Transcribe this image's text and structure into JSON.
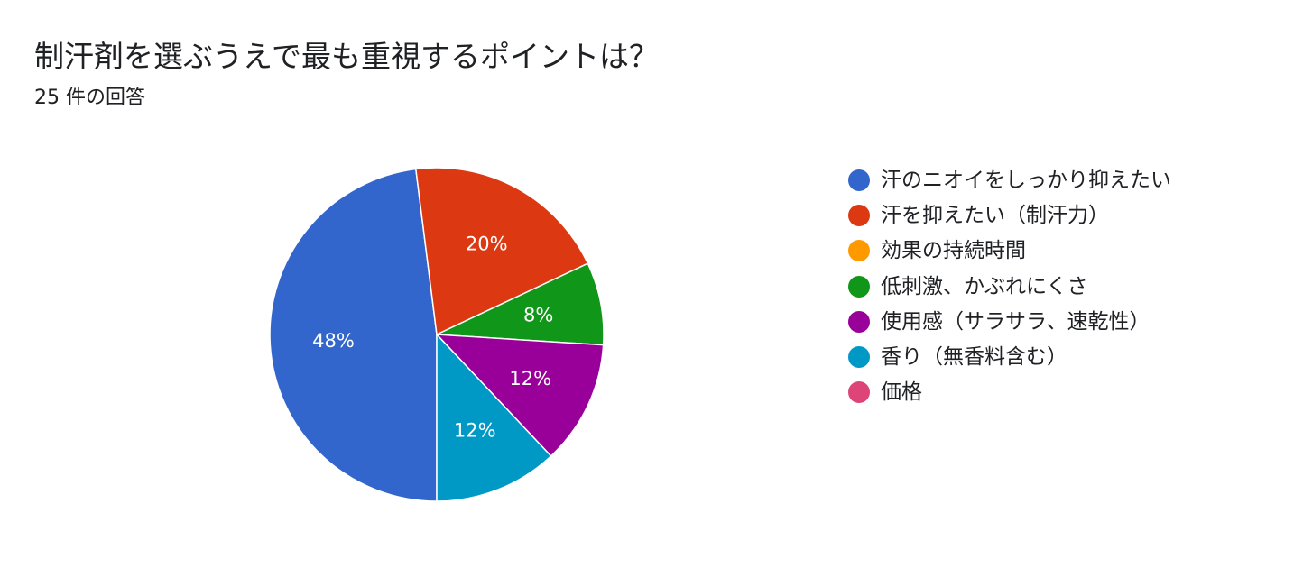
{
  "chart_data": {
    "type": "pie",
    "title": "制汗剤を選ぶうえで最も重視するポイントは？",
    "subtitle": "25 件の回答",
    "total_responses": 25,
    "slices": [
      {
        "label": "汗のニオイをしっかり抑えたい",
        "value": 12,
        "percent": 48,
        "percent_label": "48%",
        "color": "#3366cc"
      },
      {
        "label": "汗を抑えたい（制汗力）",
        "value": 5,
        "percent": 20,
        "percent_label": "20%",
        "color": "#dc3912"
      },
      {
        "label": "効果の持続時間",
        "value": 0,
        "percent": 0,
        "percent_label": "",
        "color": "#ff9900"
      },
      {
        "label": "低刺激、かぶれにくさ",
        "value": 2,
        "percent": 8,
        "percent_label": "8%",
        "color": "#109618"
      },
      {
        "label": "使用感（サラサラ、速乾性）",
        "value": 3,
        "percent": 12,
        "percent_label": "12%",
        "color": "#990099"
      },
      {
        "label": "香り（無香料含む）",
        "value": 3,
        "percent": 12,
        "percent_label": "12%",
        "color": "#0099c6"
      },
      {
        "label": "価格",
        "value": 0,
        "percent": 0,
        "percent_label": "",
        "color": "#dd4477"
      }
    ],
    "legend_position": "right"
  }
}
